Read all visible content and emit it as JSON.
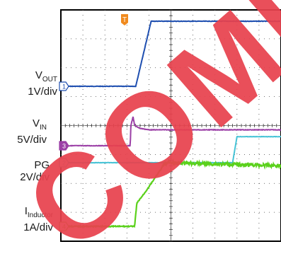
{
  "chart_data": {
    "type": "line",
    "grid": true,
    "trigger_marker": "T",
    "watermark_text": "COMP",
    "series": [
      {
        "ref_marker": "1",
        "label_main": "V",
        "label_sub": "OUT",
        "label_scale": "1V/div",
        "color": "#1f4fb0",
        "x": [
          0,
          3.4,
          4.1,
          10
        ],
        "y": [
          0,
          0,
          2.25,
          2.25
        ]
      },
      {
        "ref_marker": "3",
        "label_main": "V",
        "label_sub": "IN",
        "label_scale": "5V/div",
        "color": "#9b3fa6",
        "x": [
          0,
          3.15,
          3.18,
          3.28,
          3.35,
          3.6,
          4.0,
          10
        ],
        "y": [
          0,
          0,
          0.7,
          1.0,
          0.7,
          0.6,
          0.55,
          0.55
        ]
      },
      {
        "ref_marker": "2",
        "label_main": "PG",
        "label_sub": "",
        "label_scale": "2V/div",
        "color": "#46c3d6",
        "x": [
          0,
          7.8,
          8.0,
          10
        ],
        "y": [
          0,
          0,
          0.9,
          0.9
        ]
      },
      {
        "ref_marker": "4",
        "label_main": "I",
        "label_sub": "Inductor",
        "label_scale": "1A/div",
        "color": "#5bd11c",
        "x": [
          0,
          3.35,
          3.45,
          3.8,
          4.75,
          10
        ],
        "y": [
          0,
          0,
          0.8,
          1.15,
          2.2,
          2.1
        ]
      }
    ]
  }
}
